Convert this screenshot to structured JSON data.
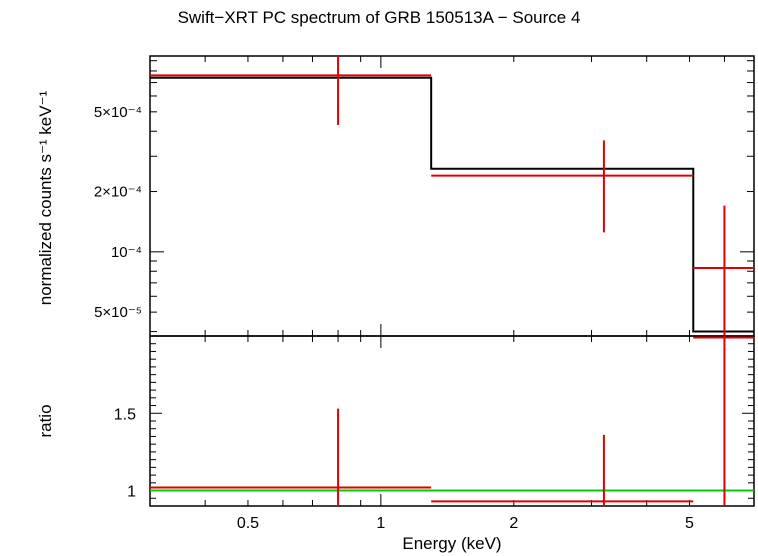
{
  "chart_data": [
    {
      "type": "line",
      "panel": "spectrum",
      "title": "Swift−XRT PC spectrum of GRB 150513A − Source 4",
      "ylabel": "normalized counts s⁻¹ keV⁻¹",
      "xscale": "log",
      "yscale": "log",
      "xlim": [
        0.3,
        7.0
      ],
      "ylim": [
        3.8e-05,
        0.00095
      ],
      "yticks": [
        {
          "value": 0.0005,
          "label": "5×10⁻⁴"
        },
        {
          "value": 0.0002,
          "label": "2×10⁻⁴"
        },
        {
          "value": 0.0001,
          "label": "10⁻⁴"
        },
        {
          "value": 5e-05,
          "label": "5×10⁻⁵"
        }
      ],
      "data_color": "#e00000",
      "model_color": "#000000",
      "data": [
        {
          "xlo": 0.3,
          "xhi": 1.3,
          "x": 0.8,
          "y": 0.00076,
          "ylo": 0.00043,
          "yhi": 0.00095
        },
        {
          "xlo": 1.3,
          "xhi": 5.1,
          "x": 3.2,
          "y": 0.00024,
          "ylo": 0.000125,
          "yhi": 0.00036
        },
        {
          "xlo": 5.1,
          "xhi": 7.0,
          "x": 6.0,
          "y": 8.3e-05,
          "ylo": 3.8e-05,
          "yhi": 0.00017
        }
      ],
      "model": [
        {
          "xlo": 0.3,
          "xhi": 1.3,
          "y": 0.00074
        },
        {
          "xlo": 1.3,
          "xhi": 5.1,
          "y": 0.00026
        },
        {
          "xlo": 5.1,
          "xhi": 7.0,
          "y": 4e-05
        }
      ]
    },
    {
      "type": "line",
      "panel": "ratio",
      "xlabel": "Energy (keV)",
      "ylabel": "ratio",
      "xscale": "log",
      "xlim": [
        0.3,
        7.0
      ],
      "ylim": [
        0.9,
        2.0
      ],
      "xticks": [
        {
          "value": 0.5,
          "label": "0.5"
        },
        {
          "value": 1,
          "label": "1"
        },
        {
          "value": 2,
          "label": "2"
        },
        {
          "value": 5,
          "label": "5"
        }
      ],
      "yticks": [
        {
          "value": 1.5,
          "label": "1.5"
        },
        {
          "value": 1,
          "label": "1"
        }
      ],
      "reference_line": {
        "y": 1.0,
        "color": "#00cc00"
      },
      "data_color": "#e00000",
      "data": [
        {
          "xlo": 0.3,
          "xhi": 1.3,
          "x": 0.8,
          "y": 1.02,
          "ylo": 0.9,
          "yhi": 1.53
        },
        {
          "xlo": 1.3,
          "xhi": 5.1,
          "x": 3.2,
          "y": 0.93,
          "ylo": 0.9,
          "yhi": 1.36
        },
        {
          "xlo": 5.1,
          "xhi": 7.0,
          "x": 6.0,
          "y": 1.99,
          "ylo": 0.9,
          "yhi": 2.0
        }
      ]
    }
  ]
}
